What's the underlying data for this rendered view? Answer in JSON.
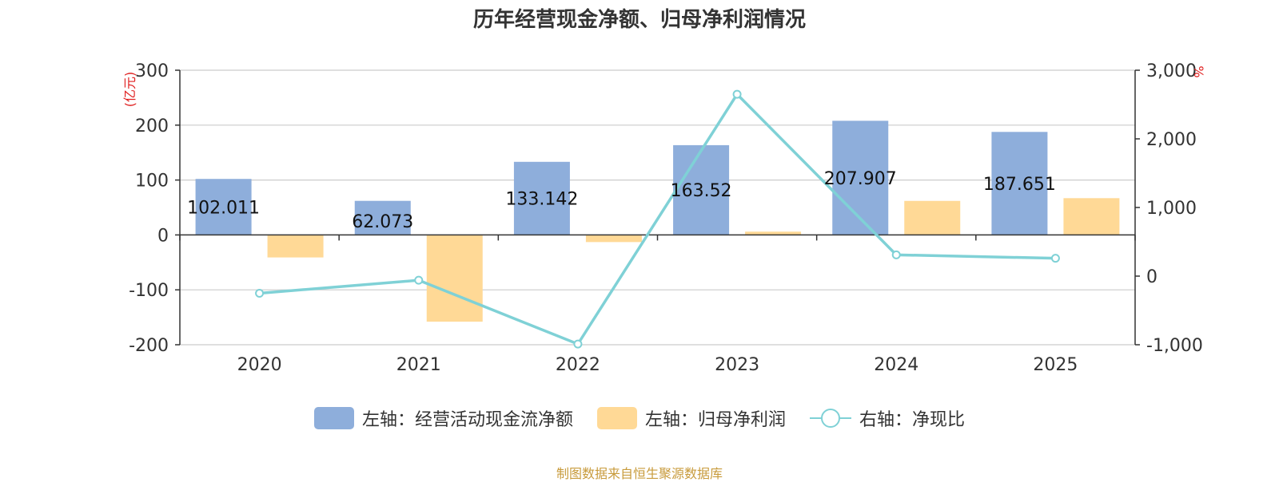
{
  "title": "历年经营现金净额、归母净利润情况",
  "left_unit": "(亿元)",
  "right_unit": "%",
  "source": "制图数据来自恒生聚源数据库",
  "colors": {
    "cash": "#8eaedb",
    "profit": "#ffd996",
    "ratio": "#7fd1d6",
    "unit": "#e02020",
    "source": "#c89b3c"
  },
  "legend": [
    {
      "label": "左轴：经营活动现金流净额",
      "kind": "bar",
      "color": "#8eaedb"
    },
    {
      "label": "左轴：归母净利润",
      "kind": "bar",
      "color": "#ffd996"
    },
    {
      "label": "右轴：净现比",
      "kind": "line",
      "color": "#7fd1d6"
    }
  ],
  "chart_data": {
    "type": "bar",
    "categories": [
      "2020",
      "2021",
      "2022",
      "2023",
      "2024",
      "2025"
    ],
    "series": [
      {
        "name": "左轴：经营活动现金流净额",
        "axis": "left",
        "type": "bar",
        "values": [
          102.011,
          62.073,
          133.142,
          163.52,
          207.907,
          187.651
        ],
        "labels": [
          "102.011",
          "62.073",
          "133.142",
          "163.52",
          "207.907",
          "187.651"
        ]
      },
      {
        "name": "左轴：归母净利润",
        "axis": "left",
        "type": "bar",
        "values": [
          -41,
          -158,
          -13,
          6,
          62,
          67
        ]
      },
      {
        "name": "右轴：净现比",
        "axis": "right",
        "type": "line",
        "values": [
          -250,
          -60,
          -990,
          2650,
          310,
          260
        ]
      }
    ],
    "left_axis": {
      "ylim": [
        -200,
        300
      ],
      "ticks": [
        "300",
        "200",
        "100",
        "0",
        "-100",
        "-200"
      ]
    },
    "right_axis": {
      "ylim": [
        -1000,
        3000
      ],
      "ticks": [
        "3,000",
        "2,000",
        "1,000",
        "0",
        "-1,000"
      ]
    },
    "grid": true,
    "legend_position": "bottom"
  }
}
